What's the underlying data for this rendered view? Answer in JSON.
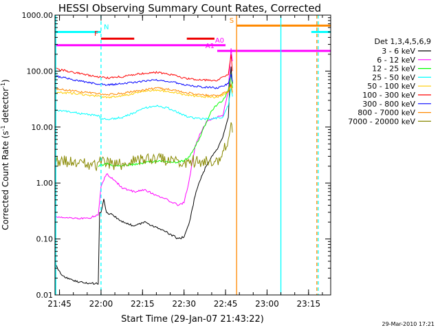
{
  "chart_data": {
    "type": "line",
    "title": "HESSI Observing Summary Count Rates, Corrected",
    "xlabel": "Start Time (29-Jan-07 21:43:22)",
    "ylabel_main": "Corrected Count Rate (s",
    "ylabel_sup1": "-1",
    "ylabel_mid": " detector",
    "ylabel_sup2": "-1",
    "ylabel_end": ")",
    "footer": "29-Mar-2010 17:21",
    "yscale": "log",
    "ylim": [
      0.01,
      1000
    ],
    "xlim": [
      "21:43:22",
      "23:23:00"
    ],
    "grid": false,
    "legend_placement": "right",
    "legend_title": "Det 1,3,4,5,6,9",
    "x_ticks": [
      {
        "t": "21:45",
        "label": "21:45"
      },
      {
        "t": "22:00",
        "label": "22:00"
      },
      {
        "t": "22:15",
        "label": "22:15"
      },
      {
        "t": "22:30",
        "label": "22:30"
      },
      {
        "t": "22:45",
        "label": "22:45"
      },
      {
        "t": "23:00",
        "label": "23:00"
      },
      {
        "t": "23:15",
        "label": "23:15"
      }
    ],
    "y_ticks": [
      {
        "v": 1000,
        "label": "1000.00"
      },
      {
        "v": 100,
        "label": "100.00"
      },
      {
        "v": 10,
        "label": "10.00"
      },
      {
        "v": 1,
        "label": "1.00"
      },
      {
        "v": 0.1,
        "label": "0.10"
      },
      {
        "v": 0.01,
        "label": "0.01"
      }
    ],
    "series": [
      {
        "name": "3 - 6 keV",
        "color": "#000000",
        "t": [
          "21:43:30",
          "21:46",
          "21:50",
          "21:55",
          "21:59",
          "21:59:30",
          "22:00",
          "22:01",
          "22:02",
          "22:04",
          "22:08",
          "22:12",
          "22:16",
          "22:20",
          "22:24",
          "22:28",
          "22:30",
          "22:32",
          "22:34",
          "22:36",
          "22:38",
          "22:40",
          "22:42",
          "22:44",
          "22:46",
          "22:46:30",
          "22:47",
          "22:47:30"
        ],
        "values": [
          0.035,
          0.022,
          0.018,
          0.016,
          0.016,
          0.3,
          0.3,
          0.5,
          0.3,
          0.27,
          0.2,
          0.17,
          0.2,
          0.16,
          0.13,
          0.1,
          0.11,
          0.2,
          0.6,
          1.2,
          2.0,
          3.0,
          4.0,
          6.5,
          15,
          50,
          120,
          60
        ]
      },
      {
        "name": "6 - 12 keV",
        "color": "#ff00ff",
        "t": [
          "21:43:30",
          "21:48",
          "21:55",
          "21:59",
          "22:00",
          "22:02",
          "22:04",
          "22:08",
          "22:12",
          "22:16",
          "22:20",
          "22:24",
          "22:28",
          "22:30",
          "22:32",
          "22:34",
          "22:36",
          "22:38",
          "22:40",
          "22:42",
          "22:44",
          "22:46",
          "22:47",
          "22:47:30"
        ],
        "values": [
          0.25,
          0.24,
          0.23,
          0.27,
          0.85,
          1.5,
          1.2,
          0.8,
          0.7,
          0.75,
          0.6,
          0.5,
          0.4,
          0.45,
          1.2,
          4.5,
          8,
          12,
          14,
          15,
          16,
          45,
          250,
          150
        ]
      },
      {
        "name": "12 - 25 keV",
        "color": "#00ff00",
        "t": [
          "21:59",
          "22:02",
          "22:06",
          "22:10",
          "22:14",
          "22:18",
          "22:22",
          "22:26",
          "22:30",
          "22:32",
          "22:34",
          "22:36",
          "22:38",
          "22:40",
          "22:42",
          "22:44",
          "22:46",
          "22:47",
          "22:47:30"
        ],
        "values": [
          2.0,
          2.2,
          2.0,
          2.1,
          2.2,
          2.4,
          2.5,
          2.3,
          2.5,
          3.0,
          4.5,
          7,
          12,
          20,
          25,
          30,
          45,
          90,
          50
        ]
      },
      {
        "name": "25 - 50 keV",
        "color": "#00ffff",
        "t": [
          "21:43:30",
          "21:48",
          "21:54",
          "21:59",
          "22:00",
          "22:04",
          "22:08",
          "22:12",
          "22:16",
          "22:20",
          "22:24",
          "22:28",
          "22:32",
          "22:36",
          "22:40",
          "22:44",
          "22:46",
          "22:47",
          "22:47:30"
        ],
        "values": [
          20,
          19,
          17,
          16,
          14,
          14,
          15,
          18,
          22,
          24,
          22,
          18,
          15,
          14,
          14,
          15,
          25,
          50,
          35
        ]
      },
      {
        "name": "50 - 100 keV",
        "color": "#ffcc00",
        "t": [
          "21:43:30",
          "21:50",
          "21:58",
          "22:02",
          "22:08",
          "22:14",
          "22:20",
          "22:26",
          "22:30",
          "22:36",
          "22:42",
          "22:46",
          "22:47",
          "22:47:30"
        ],
        "values": [
          42,
          40,
          36,
          34,
          36,
          42,
          46,
          42,
          38,
          35,
          34,
          42,
          55,
          40
        ]
      },
      {
        "name": "100 - 300 keV",
        "color": "#ff0000",
        "t": [
          "21:43:30",
          "21:50",
          "21:58",
          "22:02",
          "22:08",
          "22:14",
          "22:20",
          "22:26",
          "22:30",
          "22:36",
          "22:42",
          "22:46",
          "22:47",
          "22:47:30"
        ],
        "values": [
          110,
          95,
          80,
          75,
          80,
          90,
          95,
          85,
          75,
          70,
          68,
          90,
          200,
          100
        ]
      },
      {
        "name": "300 - 800 keV",
        "color": "#0000ff",
        "t": [
          "21:43:30",
          "21:50",
          "21:58",
          "22:02",
          "22:08",
          "22:14",
          "22:20",
          "22:26",
          "22:30",
          "22:36",
          "22:42",
          "22:46",
          "22:47",
          "22:47:30"
        ],
        "values": [
          82,
          70,
          60,
          57,
          60,
          65,
          70,
          64,
          58,
          52,
          50,
          60,
          90,
          65
        ]
      },
      {
        "name": "800 - 7000 keV",
        "color": "#ff8800",
        "t": [
          "21:43:30",
          "21:50",
          "21:58",
          "22:02",
          "22:08",
          "22:14",
          "22:20",
          "22:26",
          "22:30",
          "22:36",
          "22:42",
          "22:46",
          "22:47",
          "22:47:30"
        ],
        "values": [
          48,
          44,
          40,
          38,
          40,
          45,
          50,
          46,
          42,
          38,
          36,
          44,
          60,
          42
        ]
      },
      {
        "name": "7000 - 20000 keV",
        "color": "#888800",
        "noisy": true,
        "t": [
          "21:43:30",
          "21:50",
          "21:58",
          "22:00",
          "22:06",
          "22:12",
          "22:18",
          "22:24",
          "22:30",
          "22:36",
          "22:42",
          "22:46",
          "22:47",
          "22:47:30"
        ],
        "values": [
          2.5,
          2.3,
          2.0,
          2.4,
          2.1,
          2.5,
          2.8,
          2.6,
          2.4,
          2.5,
          2.5,
          6,
          15,
          8
        ]
      }
    ],
    "flag_bars": [
      {
        "label": "N",
        "color": "#00ffff",
        "segments": [
          [
            "21:43:22",
            "22:00"
          ],
          [
            "23:16",
            "23:23"
          ]
        ],
        "level": 500
      },
      {
        "label": "F",
        "color": "#ee0000",
        "segments": [
          [
            "22:00",
            "22:12"
          ],
          [
            "22:31",
            "22:41"
          ]
        ],
        "level": 380
      },
      {
        "label": "A0",
        "color": "#ff00ff",
        "segments": [
          [
            "21:43:22",
            "22:45"
          ]
        ],
        "level": 290
      },
      {
        "label": "A1",
        "color": "#ff00ff",
        "segments": [
          [
            "22:42",
            "23:23"
          ]
        ],
        "level": 230
      },
      {
        "label": "S",
        "color": "#ff8800",
        "segments": [
          [
            "22:49",
            "23:23"
          ]
        ],
        "level": 650
      }
    ],
    "vlines": [
      {
        "t": "21:43:40",
        "color": "#00ffff",
        "dashed": false
      },
      {
        "t": "22:00",
        "color": "#00ffff",
        "dashed": true
      },
      {
        "t": "22:49",
        "color": "#ff8800",
        "dashed": false
      },
      {
        "t": "23:05",
        "color": "#00ffff",
        "dashed": false
      },
      {
        "t": "23:18",
        "color": "#ff8800",
        "dashed": true
      },
      {
        "t": "23:18:30",
        "color": "#00ffff",
        "dashed": true
      }
    ]
  }
}
